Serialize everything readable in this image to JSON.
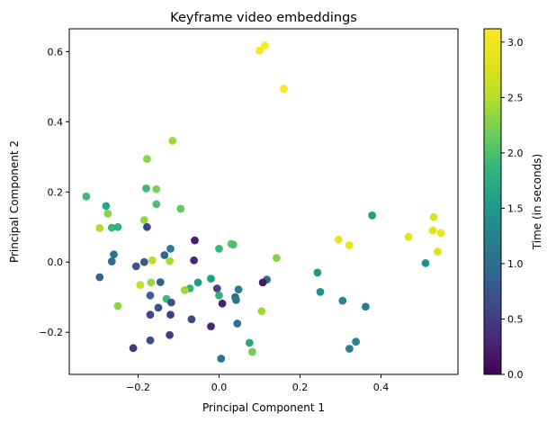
{
  "chart_data": {
    "type": "scatter",
    "title": "Keyframe video embeddings",
    "xlabel": "Principal Component 1",
    "ylabel": "Principal Component 2",
    "xlim": [
      -0.37,
      0.59
    ],
    "ylim": [
      -0.32,
      0.665
    ],
    "xticks": [
      -0.2,
      0.0,
      0.2,
      0.4
    ],
    "xtick_labels": [
      "−0.2",
      "0.0",
      "0.2",
      "0.4"
    ],
    "yticks": [
      -0.2,
      0.0,
      0.2,
      0.4,
      0.6
    ],
    "ytick_labels": [
      "−0.2",
      "0.0",
      "0.2",
      "0.4",
      "0.6"
    ],
    "grid": false,
    "colormap": "viridis",
    "colorbar": {
      "label": "Time (in seconds)",
      "range": [
        0.0,
        3.12
      ],
      "ticks": [
        0.0,
        0.5,
        1.0,
        1.5,
        2.0,
        2.5,
        3.0
      ],
      "tick_labels": [
        "0.0",
        "0.5",
        "1.0",
        "1.5",
        "2.0",
        "2.5",
        "3.0"
      ]
    },
    "points": [
      {
        "x": 0.113,
        "y": 0.617,
        "t": 3.1
      },
      {
        "x": 0.1,
        "y": 0.603,
        "t": 3.08
      },
      {
        "x": 0.16,
        "y": 0.494,
        "t": 3.05
      },
      {
        "x": -0.115,
        "y": 0.346,
        "t": 2.4
      },
      {
        "x": -0.178,
        "y": 0.294,
        "t": 2.3
      },
      {
        "x": -0.18,
        "y": 0.21,
        "t": 1.9
      },
      {
        "x": -0.155,
        "y": 0.208,
        "t": 2.25
      },
      {
        "x": -0.328,
        "y": 0.187,
        "t": 1.9
      },
      {
        "x": -0.155,
        "y": 0.165,
        "t": 2.0
      },
      {
        "x": -0.279,
        "y": 0.16,
        "t": 1.7
      },
      {
        "x": -0.095,
        "y": 0.152,
        "t": 2.1
      },
      {
        "x": -0.275,
        "y": 0.138,
        "t": 2.3
      },
      {
        "x": -0.185,
        "y": 0.12,
        "t": 2.35
      },
      {
        "x": -0.295,
        "y": 0.097,
        "t": 2.45
      },
      {
        "x": -0.265,
        "y": 0.098,
        "t": 1.9
      },
      {
        "x": -0.25,
        "y": 0.1,
        "t": 1.8
      },
      {
        "x": -0.178,
        "y": 0.1,
        "t": 0.6
      },
      {
        "x": 0.378,
        "y": 0.133,
        "t": 1.6
      },
      {
        "x": 0.53,
        "y": 0.128,
        "t": 2.8
      },
      {
        "x": 0.528,
        "y": 0.09,
        "t": 2.85
      },
      {
        "x": 0.548,
        "y": 0.083,
        "t": 2.9
      },
      {
        "x": 0.468,
        "y": 0.072,
        "t": 2.85
      },
      {
        "x": 0.295,
        "y": 0.064,
        "t": 2.9
      },
      {
        "x": -0.06,
        "y": 0.062,
        "t": 0.25
      },
      {
        "x": 0.03,
        "y": 0.052,
        "t": 2.1
      },
      {
        "x": 0.035,
        "y": 0.05,
        "t": 2.0
      },
      {
        "x": 0.322,
        "y": 0.048,
        "t": 2.9
      },
      {
        "x": 0.0,
        "y": 0.038,
        "t": 1.9
      },
      {
        "x": -0.12,
        "y": 0.038,
        "t": 1.2
      },
      {
        "x": 0.54,
        "y": 0.03,
        "t": 2.8
      },
      {
        "x": -0.26,
        "y": 0.022,
        "t": 1.1
      },
      {
        "x": -0.135,
        "y": 0.02,
        "t": 0.9
      },
      {
        "x": 0.142,
        "y": 0.012,
        "t": 2.3
      },
      {
        "x": -0.165,
        "y": 0.005,
        "t": 2.5
      },
      {
        "x": -0.122,
        "y": 0.003,
        "t": 2.45
      },
      {
        "x": -0.062,
        "y": 0.005,
        "t": 0.3
      },
      {
        "x": -0.265,
        "y": 0.002,
        "t": 1.0
      },
      {
        "x": -0.185,
        "y": 0.0,
        "t": 0.8
      },
      {
        "x": 0.51,
        "y": -0.003,
        "t": 1.4
      },
      {
        "x": -0.205,
        "y": -0.012,
        "t": 0.75
      },
      {
        "x": 0.243,
        "y": -0.03,
        "t": 1.5
      },
      {
        "x": -0.295,
        "y": -0.043,
        "t": 0.9
      },
      {
        "x": -0.02,
        "y": -0.047,
        "t": 1.6
      },
      {
        "x": 0.118,
        "y": -0.05,
        "t": 1.0
      },
      {
        "x": -0.145,
        "y": -0.057,
        "t": 0.85
      },
      {
        "x": 0.108,
        "y": -0.058,
        "t": 0.2
      },
      {
        "x": -0.168,
        "y": -0.058,
        "t": 2.35
      },
      {
        "x": -0.052,
        "y": -0.058,
        "t": 1.5
      },
      {
        "x": -0.195,
        "y": -0.065,
        "t": 2.6
      },
      {
        "x": -0.005,
        "y": -0.075,
        "t": 0.6
      },
      {
        "x": -0.072,
        "y": -0.075,
        "t": 1.8
      },
      {
        "x": 0.048,
        "y": -0.078,
        "t": 1.2
      },
      {
        "x": -0.085,
        "y": -0.08,
        "t": 2.4
      },
      {
        "x": 0.25,
        "y": -0.085,
        "t": 1.4
      },
      {
        "x": -0.17,
        "y": -0.095,
        "t": 0.9
      },
      {
        "x": 0.0,
        "y": -0.095,
        "t": 1.8
      },
      {
        "x": 0.04,
        "y": -0.1,
        "t": 0.9
      },
      {
        "x": -0.13,
        "y": -0.105,
        "t": 1.9
      },
      {
        "x": 0.042,
        "y": -0.108,
        "t": 1.1
      },
      {
        "x": 0.305,
        "y": -0.11,
        "t": 1.3
      },
      {
        "x": -0.118,
        "y": -0.115,
        "t": 0.7
      },
      {
        "x": 0.008,
        "y": -0.118,
        "t": 0.25
      },
      {
        "x": 0.362,
        "y": -0.127,
        "t": 1.2
      },
      {
        "x": -0.25,
        "y": -0.125,
        "t": 2.3
      },
      {
        "x": -0.15,
        "y": -0.13,
        "t": 0.7
      },
      {
        "x": 0.105,
        "y": -0.14,
        "t": 2.4
      },
      {
        "x": -0.17,
        "y": -0.15,
        "t": 0.6
      },
      {
        "x": -0.12,
        "y": -0.15,
        "t": 0.55
      },
      {
        "x": -0.068,
        "y": -0.163,
        "t": 0.6
      },
      {
        "x": 0.045,
        "y": -0.175,
        "t": 1.0
      },
      {
        "x": -0.02,
        "y": -0.183,
        "t": 0.3
      },
      {
        "x": -0.122,
        "y": -0.208,
        "t": 0.5
      },
      {
        "x": -0.17,
        "y": -0.223,
        "t": 0.65
      },
      {
        "x": 0.075,
        "y": -0.23,
        "t": 1.7
      },
      {
        "x": 0.338,
        "y": -0.227,
        "t": 1.3
      },
      {
        "x": -0.212,
        "y": -0.245,
        "t": 0.45
      },
      {
        "x": 0.322,
        "y": -0.247,
        "t": 1.2
      },
      {
        "x": 0.082,
        "y": -0.256,
        "t": 2.2
      },
      {
        "x": 0.005,
        "y": -0.275,
        "t": 1.1
      }
    ]
  }
}
